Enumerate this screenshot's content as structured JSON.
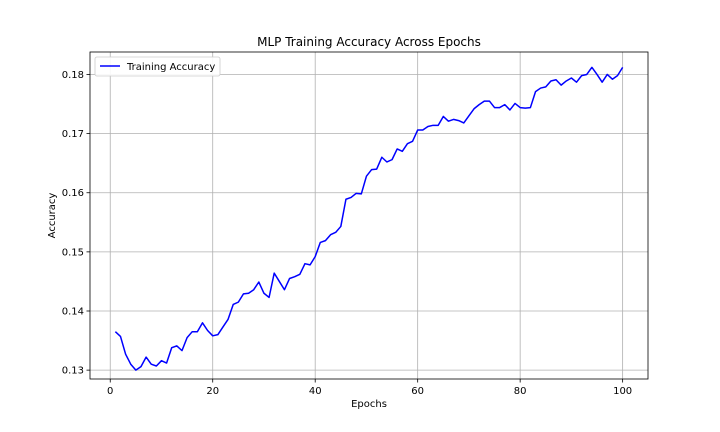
{
  "chart_data": {
    "type": "line",
    "title": "MLP Training Accuracy Across Epochs",
    "xlabel": "Epochs",
    "ylabel": "Accuracy",
    "xlim": [
      -3.95,
      104.95
    ],
    "ylim": [
      0.1285,
      0.1838
    ],
    "xticks": [
      0,
      20,
      40,
      60,
      80,
      100
    ],
    "yticks": [
      0.13,
      0.14,
      0.15,
      0.16,
      0.17,
      0.18
    ],
    "ytick_labels": [
      "0.13",
      "0.14",
      "0.15",
      "0.16",
      "0.17",
      "0.18"
    ],
    "grid": true,
    "legend_position": "upper-left",
    "series": [
      {
        "name": "Training Accuracy",
        "color": "#0000ff",
        "x": [
          1,
          2,
          3,
          4,
          5,
          6,
          7,
          8,
          9,
          10,
          11,
          12,
          13,
          14,
          15,
          16,
          17,
          18,
          19,
          20,
          21,
          22,
          23,
          24,
          25,
          26,
          27,
          28,
          29,
          30,
          31,
          32,
          33,
          34,
          35,
          36,
          37,
          38,
          39,
          40,
          41,
          42,
          43,
          44,
          45,
          46,
          47,
          48,
          49,
          50,
          51,
          52,
          53,
          54,
          55,
          56,
          57,
          58,
          59,
          60,
          61,
          62,
          63,
          64,
          65,
          66,
          67,
          68,
          69,
          70,
          71,
          72,
          73,
          74,
          75,
          76,
          77,
          78,
          79,
          80,
          81,
          82,
          83,
          84,
          85,
          86,
          87,
          88,
          89,
          90,
          91,
          92,
          93,
          94,
          95,
          96,
          97,
          98,
          99,
          100
        ],
        "y": [
          0.1365,
          0.1357,
          0.1327,
          0.131,
          0.13,
          0.1306,
          0.1322,
          0.131,
          0.1307,
          0.1316,
          0.1312,
          0.1338,
          0.1341,
          0.1333,
          0.1355,
          0.1365,
          0.1365,
          0.138,
          0.1367,
          0.1358,
          0.136,
          0.1373,
          0.1386,
          0.1411,
          0.1415,
          0.1429,
          0.143,
          0.1436,
          0.1449,
          0.143,
          0.1423,
          0.1464,
          0.145,
          0.1436,
          0.1455,
          0.1458,
          0.1462,
          0.148,
          0.1478,
          0.1492,
          0.1516,
          0.1519,
          0.1529,
          0.1533,
          0.1543,
          0.1589,
          0.1592,
          0.1599,
          0.1598,
          0.1628,
          0.1639,
          0.164,
          0.166,
          0.1652,
          0.1656,
          0.1674,
          0.167,
          0.1683,
          0.1687,
          0.1706,
          0.1706,
          0.1712,
          0.1714,
          0.1714,
          0.1729,
          0.1721,
          0.1724,
          0.1722,
          0.1718,
          0.173,
          0.1742,
          0.1749,
          0.1755,
          0.1755,
          0.1744,
          0.1744,
          0.1749,
          0.174,
          0.1751,
          0.1744,
          0.1743,
          0.1744,
          0.1771,
          0.1777,
          0.1779,
          0.1789,
          0.1791,
          0.1782,
          0.1789,
          0.1794,
          0.1787,
          0.1798,
          0.18,
          0.1812,
          0.18,
          0.1787,
          0.18,
          0.1792,
          0.1798,
          0.1812
        ]
      }
    ]
  }
}
